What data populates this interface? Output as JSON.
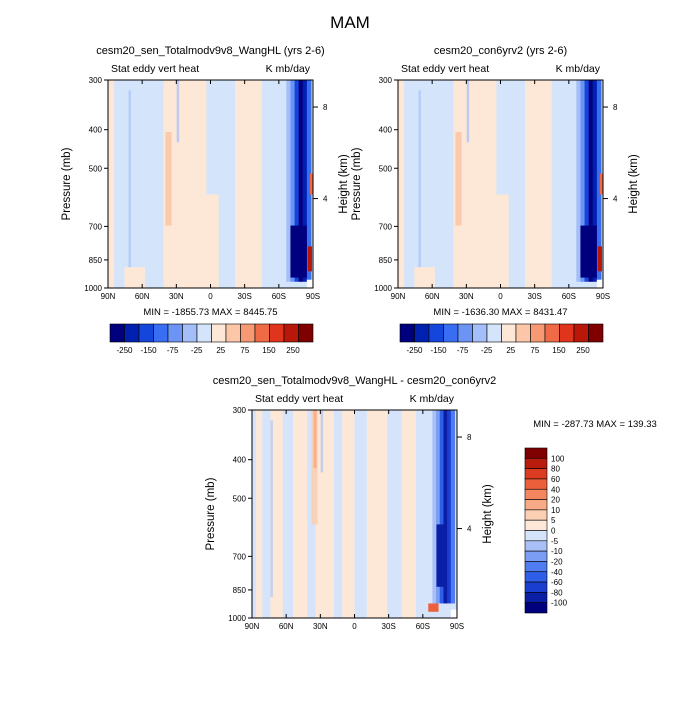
{
  "page_title": "MAM",
  "colors": {
    "neg": [
      "#00007f",
      "#0020b0",
      "#1546dc",
      "#3a6ef2",
      "#6b94f5",
      "#a3bef8",
      "#d3e4fb"
    ],
    "pos": [
      "#fde8d8",
      "#fbc7a8",
      "#f79a74",
      "#f06a45",
      "#e0351c",
      "#b8170a",
      "#7f0000"
    ],
    "diff_neg": [
      "#00007f",
      "#0a1fa6",
      "#1a3fd0",
      "#2f5ee9",
      "#4f7cf0",
      "#7b9df4",
      "#a9c0f7",
      "#d6e4fb"
    ],
    "diff_pos": [
      "#fde8d8",
      "#fbcfb2",
      "#f8aa87",
      "#f4865f",
      "#ec5f3b",
      "#db3b20",
      "#b81c0d",
      "#7f0000"
    ]
  },
  "chart_data": [
    {
      "type": "heatmap",
      "title": "cesm20_sen_Totalmodv9v8_WangHL (yrs 2-6)",
      "left_string": "Stat eddy vert heat",
      "right_string": "K mb/day",
      "xlabel": "",
      "ylabel": "Pressure (mb)",
      "ylabel_right": "Height (km)",
      "x_ticks": [
        "90N",
        "60N",
        "30N",
        "0",
        "30S",
        "60S",
        "90S"
      ],
      "y_ticks": [
        "300",
        "400",
        "500",
        "700",
        "850",
        "1000"
      ],
      "y_ticks_right": [
        "8",
        "4"
      ],
      "min_max": "MIN = -1855.73   MAX = 8445.75",
      "levels": [
        "-250",
        "-150",
        "-75",
        "-25",
        "25",
        "75",
        "150",
        "250"
      ]
    },
    {
      "type": "heatmap",
      "title": "cesm20_con6yrv2 (yrs 2-6)",
      "left_string": "Stat eddy vert heat",
      "right_string": "K mb/day",
      "xlabel": "",
      "ylabel": "Pressure (mb)",
      "ylabel_right": "Height (km)",
      "x_ticks": [
        "90N",
        "60N",
        "30N",
        "0",
        "30S",
        "60S",
        "90S"
      ],
      "y_ticks": [
        "300",
        "400",
        "500",
        "700",
        "850",
        "1000"
      ],
      "y_ticks_right": [
        "8",
        "4"
      ],
      "min_max": "MIN = -1636.30   MAX = 8431.47",
      "levels": [
        "-250",
        "-150",
        "-75",
        "-25",
        "25",
        "75",
        "150",
        "250"
      ]
    },
    {
      "type": "heatmap",
      "title": "cesm20_sen_Totalmodv9v8_WangHL - cesm20_con6yrv2",
      "left_string": "Stat eddy vert heat",
      "right_string": "K mb/day",
      "xlabel": "",
      "ylabel": "Pressure (mb)",
      "ylabel_right": "Height (km)",
      "x_ticks": [
        "90N",
        "60N",
        "30N",
        "0",
        "30S",
        "60S",
        "90S"
      ],
      "y_ticks": [
        "300",
        "400",
        "500",
        "700",
        "850",
        "1000"
      ],
      "y_ticks_right": [
        "8",
        "4"
      ],
      "min_max": "MIN = -287.73   MAX = 139.33",
      "levels": [
        "100",
        "80",
        "60",
        "40",
        "20",
        "10",
        "5",
        "0",
        "-5",
        "-10",
        "-20",
        "-40",
        "-60",
        "-80",
        "-100"
      ]
    }
  ]
}
